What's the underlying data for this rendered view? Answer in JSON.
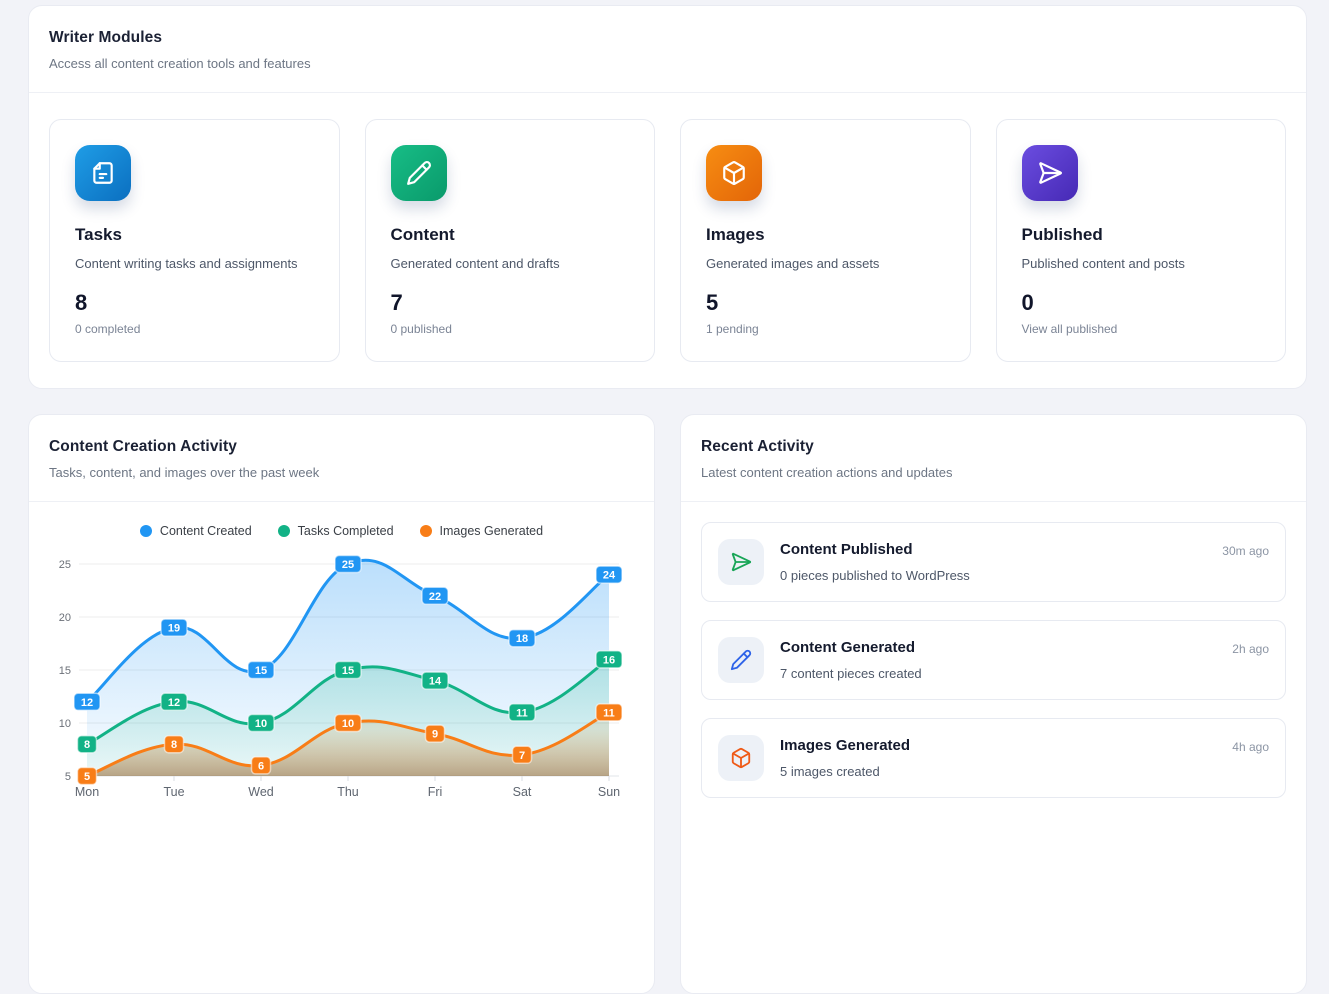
{
  "modules_panel": {
    "title": "Writer Modules",
    "subtitle": "Access all content creation tools and features",
    "cards": [
      {
        "title": "Tasks",
        "description": "Content writing tasks and assignments",
        "count": "8",
        "sub": "0 completed",
        "icon": "file-text-icon",
        "color_from": "#1f9de6",
        "color_to": "#0b6fc0"
      },
      {
        "title": "Content",
        "description": "Generated content and drafts",
        "count": "7",
        "sub": "0 published",
        "icon": "pencil-icon",
        "color_from": "#17bd86",
        "color_to": "#0a9a6b"
      },
      {
        "title": "Images",
        "description": "Generated images and assets",
        "count": "5",
        "sub": "1 pending",
        "icon": "box-icon",
        "color_from": "#f78d12",
        "color_to": "#e36508"
      },
      {
        "title": "Published",
        "description": "Published content and posts",
        "count": "0",
        "sub": "View all published",
        "icon": "send-icon",
        "color_from": "#6b4de0",
        "color_to": "#4629b5"
      }
    ]
  },
  "chart_panel": {
    "title": "Content Creation Activity",
    "subtitle": "Tasks, content, and images over the past week"
  },
  "chart_data": {
    "type": "line",
    "x": [
      "Mon",
      "Tue",
      "Wed",
      "Thu",
      "Fri",
      "Sat",
      "Sun"
    ],
    "series": [
      {
        "name": "Content Created",
        "color": "#2196f3",
        "values": [
          12,
          19,
          15,
          25,
          22,
          18,
          24
        ]
      },
      {
        "name": "Tasks Completed",
        "color": "#12b286",
        "values": [
          8,
          12,
          10,
          15,
          14,
          11,
          16
        ]
      },
      {
        "name": "Images Generated",
        "color": "#f87d17",
        "values": [
          5,
          8,
          6,
          10,
          9,
          7,
          11
        ]
      }
    ],
    "ylim": [
      5,
      25
    ],
    "yticks": [
      5,
      10,
      15,
      20,
      25
    ],
    "legend_position": "top",
    "grid": true,
    "smooth": true,
    "area_fill": true,
    "data_labels": true
  },
  "activity_panel": {
    "title": "Recent Activity",
    "subtitle": "Latest content creation actions and updates",
    "items": [
      {
        "title": "Content Published",
        "description": "0 pieces published to WordPress",
        "time": "30m ago",
        "icon": "send-icon",
        "icon_color": "#18a557"
      },
      {
        "title": "Content Generated",
        "description": "7 content pieces created",
        "time": "2h ago",
        "icon": "pencil-icon",
        "icon_color": "#2e63e8"
      },
      {
        "title": "Images Generated",
        "description": "5 images created",
        "time": "4h ago",
        "icon": "box-icon",
        "icon_color": "#ef5a17"
      }
    ]
  }
}
